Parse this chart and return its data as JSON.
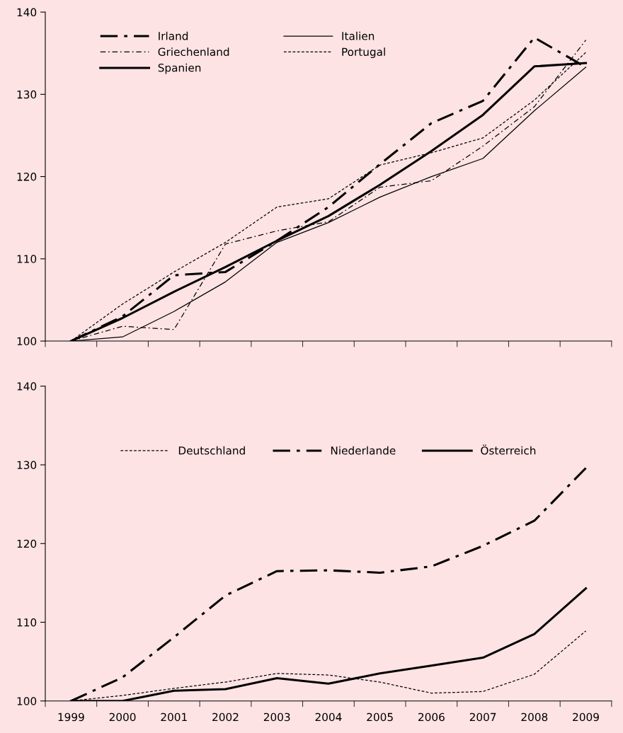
{
  "chart_data": [
    {
      "type": "line",
      "categories": [
        "1999",
        "2000",
        "2001",
        "2002",
        "2003",
        "2004",
        "2005",
        "2006",
        "2007",
        "2008",
        "2009"
      ],
      "ylim": [
        100,
        140
      ],
      "yticks": [
        100,
        110,
        120,
        130,
        140
      ],
      "tick_labels": "y",
      "legend": "top left",
      "grid": false,
      "series": [
        {
          "name": "Irland",
          "color": "#000000",
          "line_style": "dashdot",
          "values": [
            100,
            103.0,
            108.0,
            108.4,
            112.2,
            116.3,
            121.5,
            126.5,
            129.2,
            136.9,
            133.3
          ]
        },
        {
          "name": "Griechenland",
          "color": "#000000",
          "line_style": "dashdot",
          "values": [
            100,
            101.8,
            101.4,
            111.8,
            113.4,
            114.5,
            118.7,
            119.5,
            123.7,
            128.5,
            136.6
          ]
        },
        {
          "name": "Spanien",
          "color": "#000000",
          "line_style": "solid",
          "values": [
            100,
            102.8,
            106.0,
            109.0,
            112.2,
            115.2,
            119.0,
            123.1,
            127.5,
            133.4,
            133.8
          ]
        },
        {
          "name": "Italien",
          "color": "#000000",
          "line_style": "solid",
          "values": [
            100,
            100.5,
            103.6,
            107.2,
            112.0,
            114.4,
            117.5,
            120.0,
            122.2,
            128.0,
            133.3
          ]
        },
        {
          "name": "Portugal",
          "color": "#000000",
          "line_style": "dashed",
          "values": [
            100,
            104.5,
            108.4,
            112.0,
            116.3,
            117.3,
            121.4,
            122.9,
            124.7,
            129.3,
            135.1
          ]
        }
      ]
    },
    {
      "type": "line",
      "categories": [
        "1999",
        "2000",
        "2001",
        "2002",
        "2003",
        "2004",
        "2005",
        "2006",
        "2007",
        "2008",
        "2009"
      ],
      "ylim": [
        100,
        140
      ],
      "yticks": [
        100,
        110,
        120,
        130,
        140
      ],
      "legend": "top",
      "grid": false,
      "series": [
        {
          "name": "Deutschland",
          "color": "#000000",
          "line_style": "dashed",
          "values": [
            100,
            100.7,
            101.6,
            102.4,
            103.5,
            103.3,
            102.4,
            101.0,
            101.2,
            103.4,
            108.9
          ]
        },
        {
          "name": "Niederlande",
          "color": "#000000",
          "line_style": "dashdot",
          "values": [
            100,
            103.0,
            108.1,
            113.4,
            116.5,
            116.6,
            116.3,
            117.1,
            119.7,
            122.9,
            129.6
          ]
        },
        {
          "name": "Österreich",
          "color": "#000000",
          "line_style": "solid",
          "values": [
            100,
            100,
            101.3,
            101.5,
            102.9,
            102.2,
            103.5,
            104.5,
            105.5,
            108.5,
            114.3
          ]
        }
      ]
    }
  ]
}
